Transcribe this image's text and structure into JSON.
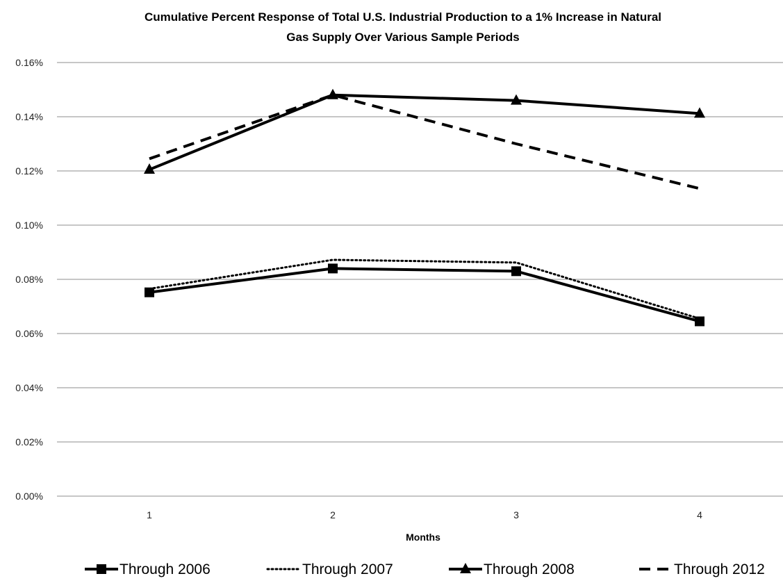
{
  "chart_data": {
    "type": "line",
    "title_line1": "Cumulative Percent Response of Total U.S. Industrial Production to a 1% Increase in Natural",
    "title_line2": "Gas Supply Over Various Sample Periods",
    "xlabel": "Months",
    "ylabel": "",
    "x": [
      1,
      2,
      3,
      4
    ],
    "x_tick_labels": [
      "1",
      "2",
      "3",
      "4"
    ],
    "y_tick_labels": [
      "0.00%",
      "0.02%",
      "0.04%",
      "0.06%",
      "0.08%",
      "0.10%",
      "0.12%",
      "0.14%",
      "0.16%"
    ],
    "ylim": [
      0,
      0.16
    ],
    "grid": "horizontal",
    "legend_position": "bottom",
    "series": [
      {
        "name": "Through 2006",
        "values": [
          0.0752,
          0.084,
          0.083,
          0.0645
        ],
        "style": "solid",
        "marker": "square"
      },
      {
        "name": "Through 2007",
        "values": [
          0.0765,
          0.0872,
          0.0862,
          0.0655
        ],
        "style": "dotted",
        "marker": "none"
      },
      {
        "name": "Through 2008",
        "values": [
          0.1205,
          0.148,
          0.146,
          0.1412
        ],
        "style": "solid",
        "marker": "triangle"
      },
      {
        "name": "Through 2012",
        "values": [
          0.1245,
          0.148,
          0.13,
          0.1135
        ],
        "style": "dashed",
        "marker": "none"
      }
    ],
    "colors": {
      "line": "#000000",
      "grid": "#8c8c8c"
    }
  }
}
